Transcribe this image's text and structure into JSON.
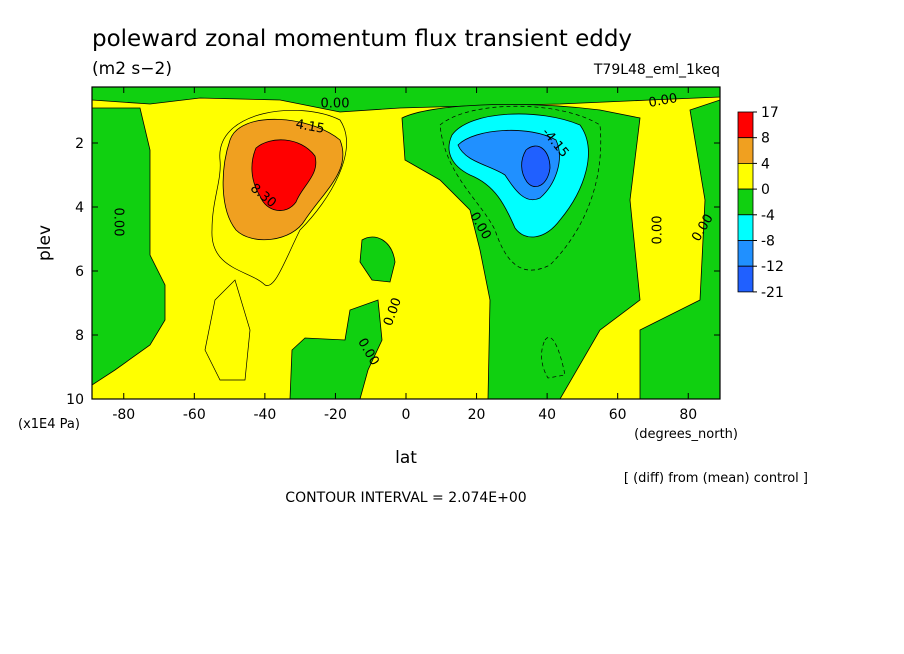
{
  "chart_data": {
    "type": "contour",
    "title": "poleward zonal momentum flux transient eddy",
    "subtitle": "(m2 s−2)",
    "dataset": "T79L48_eml_1keq",
    "xlabel": "lat",
    "ylabel": "plev",
    "x_units": "(degrees_north)",
    "y_units": "(x1E4 Pa)",
    "note": "[ (diff) from (mean) control ]",
    "contour_interval": "CONTOUR INTERVAL = 2.074E+00",
    "xlim": [
      -89,
      89
    ],
    "ylim": [
      10,
      0.25
    ],
    "xticks": [
      -80,
      -60,
      -40,
      -20,
      0,
      20,
      40,
      60,
      80
    ],
    "yticks": [
      2,
      4,
      6,
      8,
      10
    ],
    "levels": [
      17,
      8,
      4,
      0,
      -4,
      -8,
      -12,
      -21
    ],
    "colors": [
      "#ff0000",
      "#f0a020",
      "#ffff00",
      "#10d010",
      "#00ffff",
      "#2090ff",
      "#2060ff"
    ],
    "contour_labels": [
      "0.00",
      "0.00",
      "0.00",
      "0.00",
      "0.00",
      "0.00",
      "0.00",
      "0.00",
      "4.15",
      "8.30",
      "-4.15"
    ]
  }
}
